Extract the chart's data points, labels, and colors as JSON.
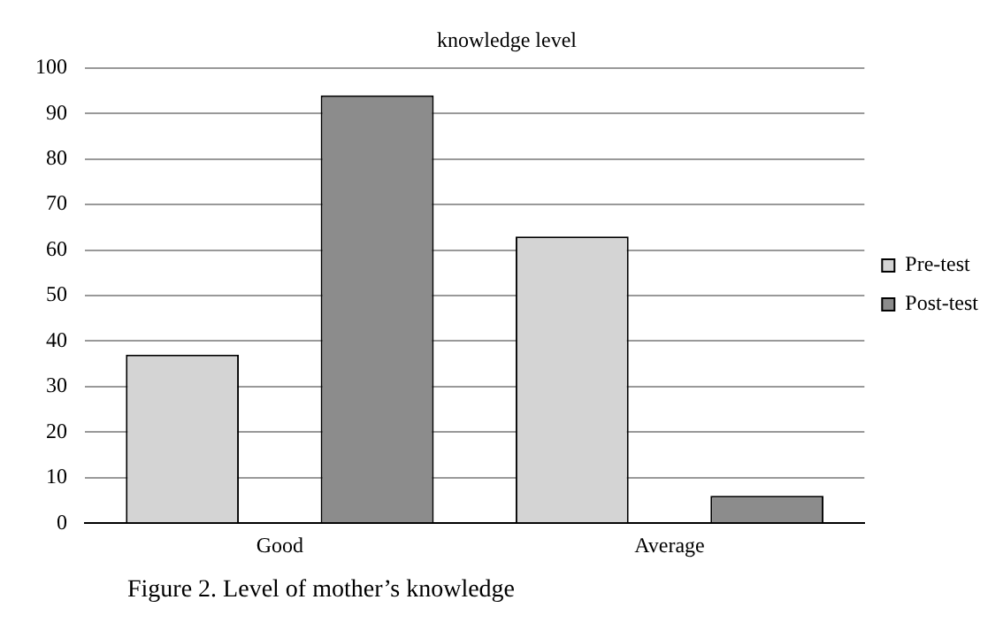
{
  "chart_data": {
    "type": "bar",
    "title": "knowledge level",
    "categories": [
      "Good",
      "Average"
    ],
    "series": [
      {
        "name": "Pre-test",
        "color": "#d4d4d4",
        "values": [
          37,
          63
        ]
      },
      {
        "name": "Post-test",
        "color": "#8c8c8c",
        "values": [
          94,
          6
        ]
      }
    ],
    "ylim": [
      0,
      100
    ],
    "yticks": [
      0,
      10,
      20,
      30,
      40,
      50,
      60,
      70,
      80,
      90,
      100
    ],
    "grid": "y",
    "legend": "right",
    "annotations": [
      "Figure 2. Level of mother’s knowledge"
    ]
  }
}
